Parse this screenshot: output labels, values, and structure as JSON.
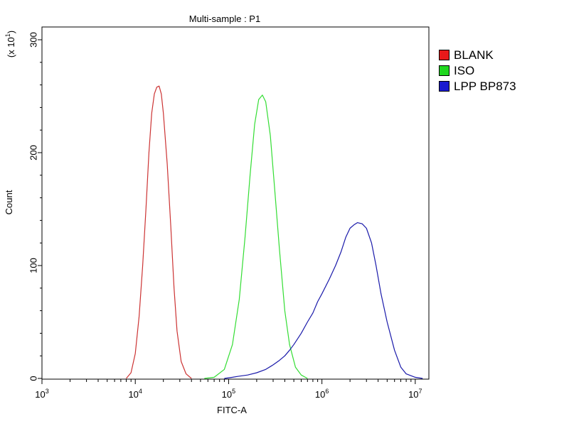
{
  "chart_data": {
    "type": "line",
    "title": "Multi-sample : P1",
    "xlabel": "FITC-A",
    "ylabel": "Count",
    "y_multiplier_label": "(x 10",
    "y_multiplier_exp": "1",
    "xscale": "log",
    "xlim": [
      1000,
      14000000
    ],
    "ylim": [
      0,
      310
    ],
    "x_ticks": [
      {
        "base": "10",
        "exp": "3",
        "value": 1000
      },
      {
        "base": "10",
        "exp": "4",
        "value": 10000
      },
      {
        "base": "10",
        "exp": "5",
        "value": 100000
      },
      {
        "base": "10",
        "exp": "6",
        "value": 1000000
      },
      {
        "base": "10",
        "exp": "7",
        "value": 10000000
      }
    ],
    "y_ticks": [
      {
        "label": "0",
        "value": 0
      },
      {
        "label": "100",
        "value": 100
      },
      {
        "label": "200",
        "value": 200
      },
      {
        "label": "300",
        "value": 300
      }
    ],
    "grid": false,
    "legend_position": "right",
    "series": [
      {
        "name": "BLANK",
        "color": "#cc3333",
        "legend_color": "#e8191a",
        "x": [
          8000,
          9000,
          10000,
          11000,
          12000,
          13000,
          14000,
          15000,
          16000,
          17000,
          18000,
          19000,
          20000,
          22000,
          24000,
          26000,
          28000,
          31000,
          35000,
          40000
        ],
        "y": [
          0,
          5,
          22,
          55,
          100,
          150,
          200,
          235,
          252,
          258,
          259,
          252,
          235,
          190,
          135,
          80,
          42,
          15,
          4,
          0
        ]
      },
      {
        "name": "ISO",
        "color": "#33dd33",
        "legend_color": "#1fd71f",
        "x": [
          55000,
          70000,
          90000,
          110000,
          130000,
          150000,
          170000,
          190000,
          210000,
          230000,
          250000,
          280000,
          310000,
          350000,
          400000,
          450000,
          520000,
          600000,
          700000
        ],
        "y": [
          0,
          1,
          8,
          30,
          70,
          125,
          180,
          225,
          247,
          251,
          245,
          215,
          170,
          115,
          60,
          30,
          10,
          3,
          0
        ]
      },
      {
        "name": "LPP BP873",
        "color": "#1a1aaa",
        "legend_color": "#1a1ad0",
        "x": [
          90000,
          110000,
          130000,
          160000,
          200000,
          250000,
          300000,
          350000,
          400000,
          450000,
          500000,
          600000,
          700000,
          800000,
          900000,
          1000000,
          1200000,
          1400000,
          1600000,
          1800000,
          2000000,
          2200000,
          2400000,
          2700000,
          3000000,
          3400000,
          3800000,
          4300000,
          5000000,
          6000000,
          7000000,
          8000000,
          10000000,
          12000000
        ],
        "y": [
          0,
          1,
          2,
          3,
          5,
          8,
          12,
          16,
          20,
          25,
          30,
          40,
          50,
          58,
          68,
          75,
          88,
          100,
          112,
          125,
          133,
          136,
          138,
          137,
          133,
          120,
          100,
          75,
          50,
          25,
          10,
          4,
          1,
          0
        ]
      }
    ]
  }
}
